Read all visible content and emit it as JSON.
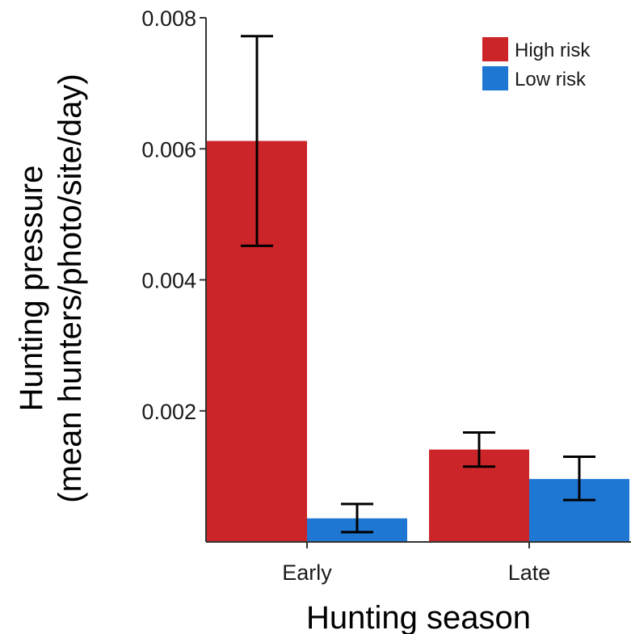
{
  "chart_data": {
    "type": "bar",
    "categories": [
      "Early",
      "Late"
    ],
    "series": [
      {
        "name": "High risk",
        "color": "#cc2529",
        "values": [
          0.00612,
          0.00141
        ],
        "error_low": [
          0.00452,
          0.00115
        ],
        "error_high": [
          0.00772,
          0.00167
        ]
      },
      {
        "name": "Low risk",
        "color": "#1f77d4",
        "values": [
          0.00036,
          0.00096
        ],
        "error_low": [
          0.00015,
          0.00064
        ],
        "error_high": [
          0.00058,
          0.0013
        ]
      }
    ],
    "xlabel": "Hunting season",
    "ylabel_line1": "Hunting pressure",
    "ylabel_line2": "(mean hunters/photo/site/day)",
    "ylim": [
      0.0,
      0.008
    ],
    "yticks": [
      0.002,
      0.004,
      0.006,
      0.008
    ],
    "ytick_labels": [
      "0.002",
      "0.004",
      "0.006",
      "0.008"
    ],
    "legend_position": "top-right",
    "grid": false
  }
}
